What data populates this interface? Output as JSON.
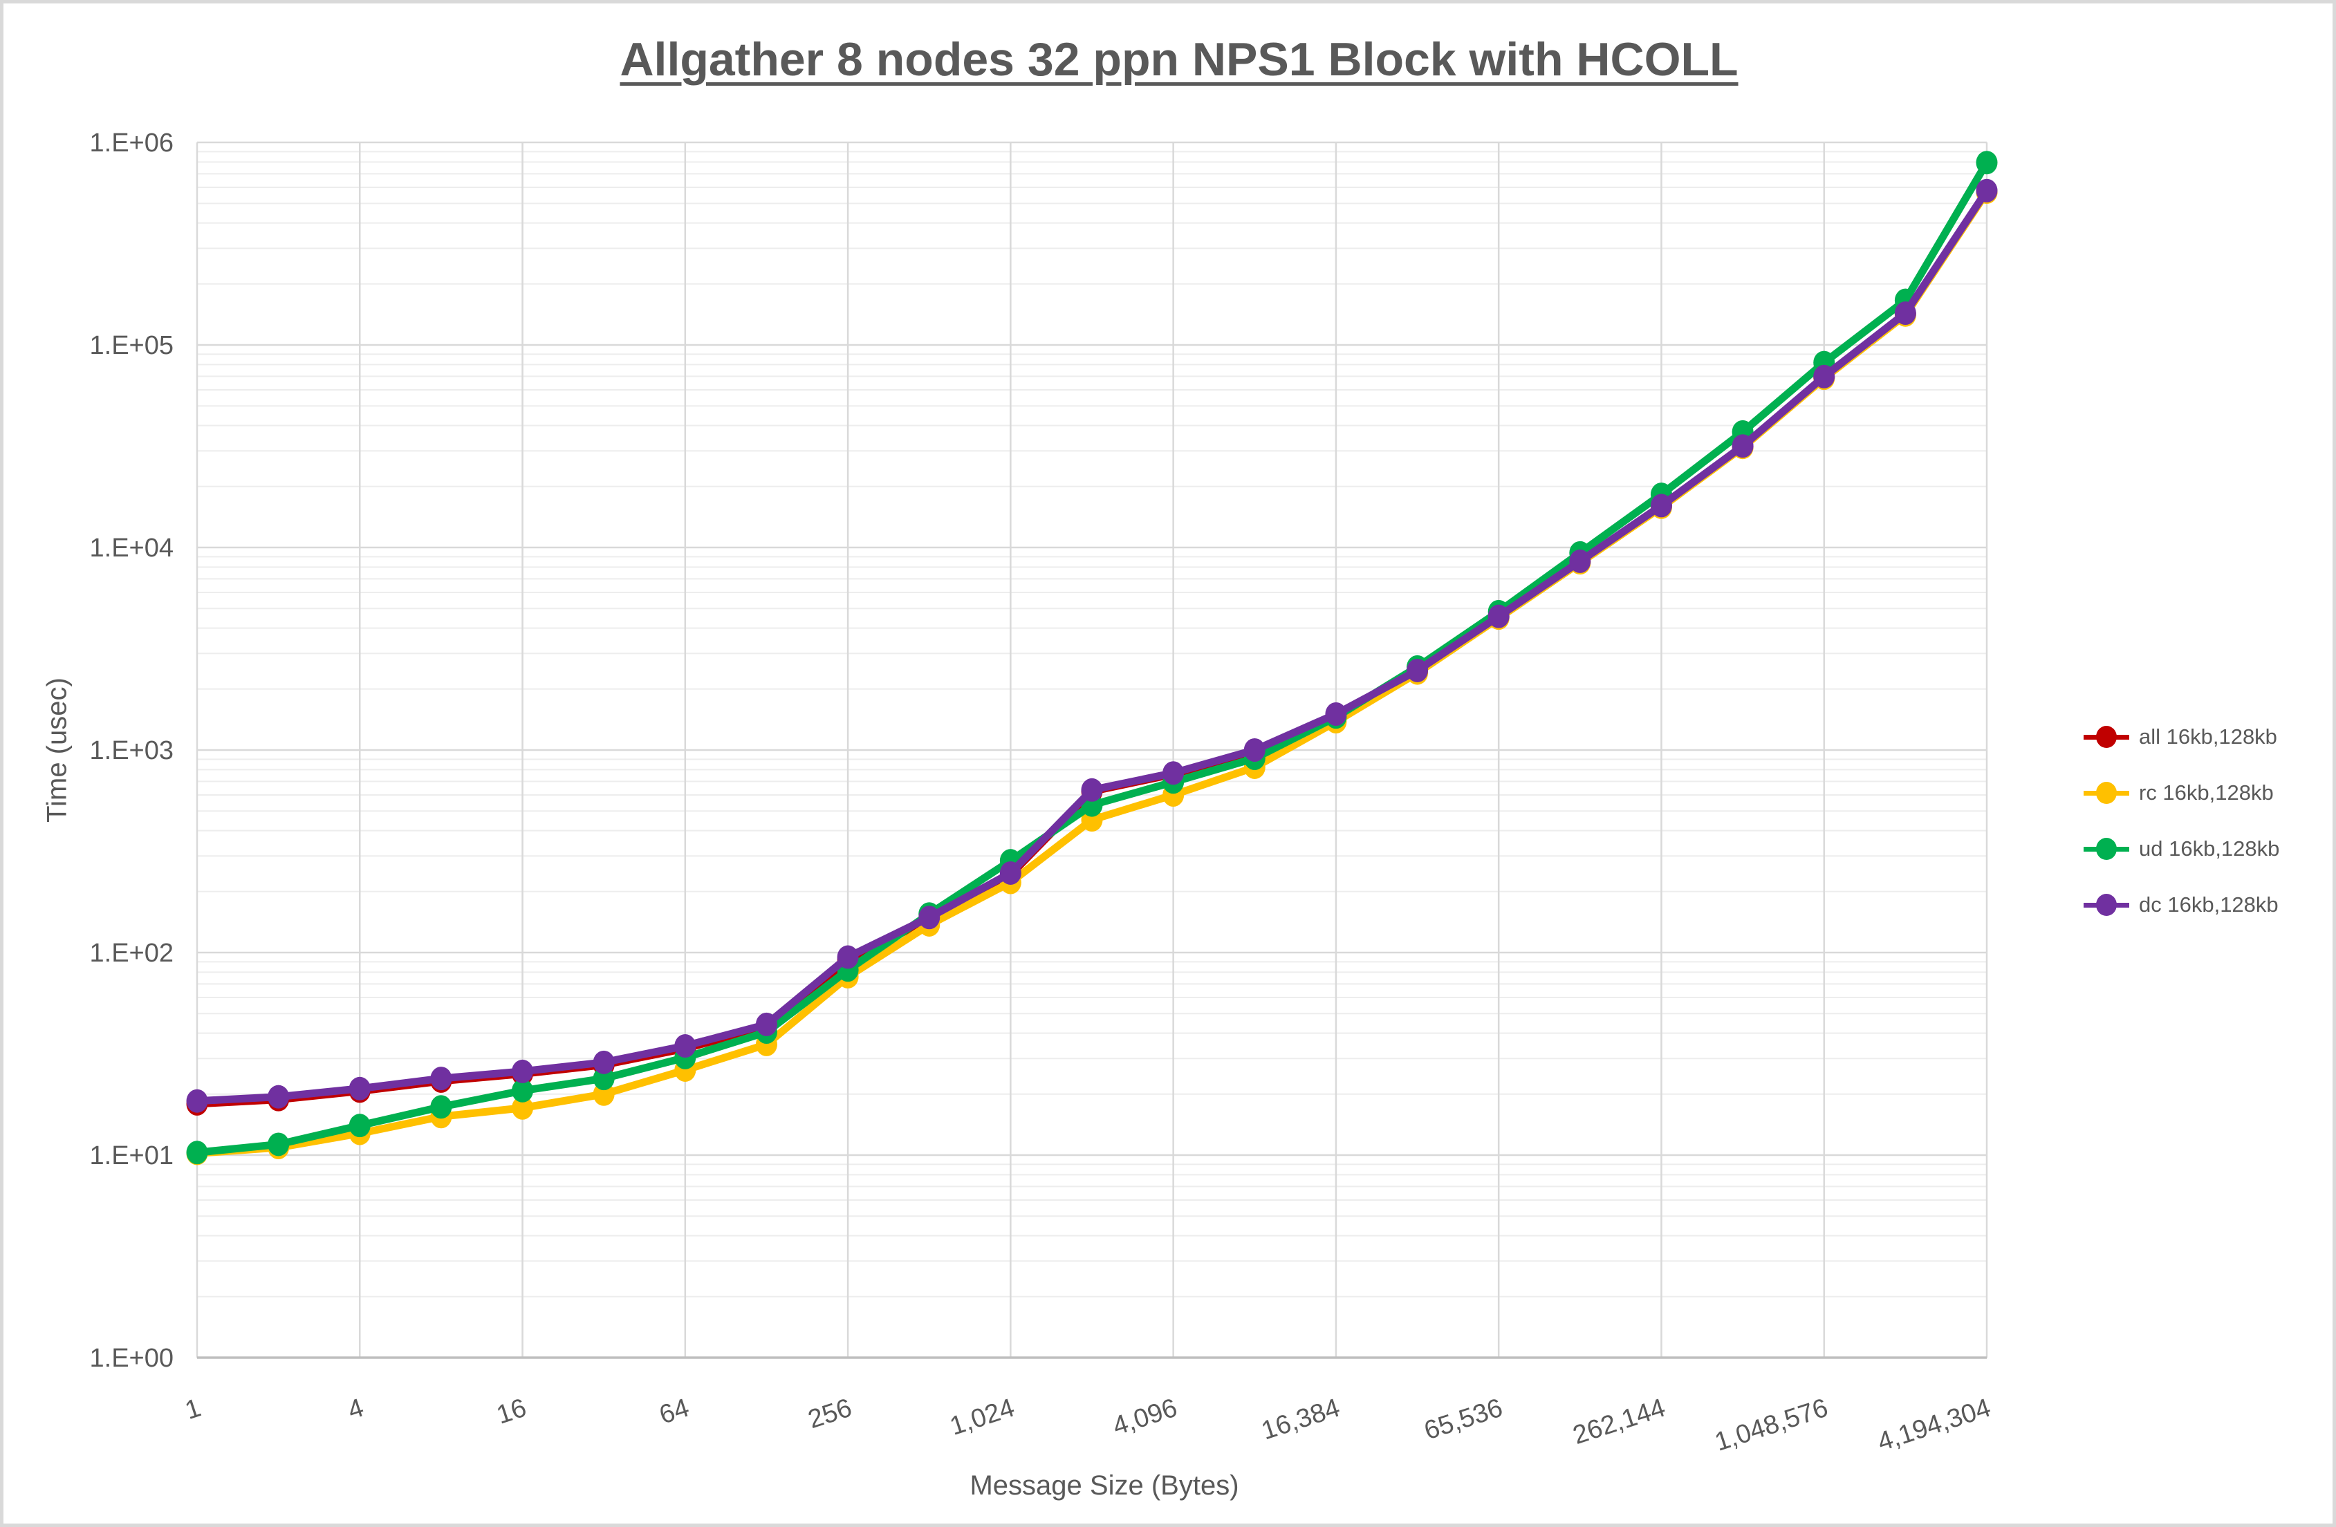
{
  "chart": {
    "title": "Allgather 8 nodes 32 ppn NPS1 Block with HCOLL",
    "x_axis_title": "Message Size (Bytes)",
    "y_axis_title": "Time (usec)"
  },
  "chart_data": {
    "type": "line",
    "x_scale": "log2 categories",
    "y_scale": "log10",
    "ylim": [
      1,
      1000000
    ],
    "grid": true,
    "legend_position": "right",
    "y_tick_labels": [
      "1.E+00",
      "1.E+01",
      "1.E+02",
      "1.E+03",
      "1.E+04",
      "1.E+05",
      "1.E+06"
    ],
    "x_tick_labels": [
      "1",
      "4",
      "16",
      "64",
      "256",
      "1,024",
      "4,096",
      "16,384",
      "65,536",
      "262,144",
      "1,048,576",
      "4,194,304"
    ],
    "categories": [
      1,
      2,
      4,
      8,
      16,
      32,
      64,
      128,
      256,
      512,
      1024,
      2048,
      4096,
      8192,
      16384,
      32768,
      65536,
      131072,
      262144,
      524288,
      1048576,
      2097152,
      4194304
    ],
    "series": [
      {
        "name": "all 16kb,128kb",
        "color": "#C00000",
        "values": [
          17.9,
          18.8,
          20.7,
          23.2,
          25.2,
          27.9,
          33.6,
          43.0,
          92,
          146,
          242,
          625,
          760,
          985,
          1480,
          2450,
          4520,
          8480,
          16000,
          31400,
          69000,
          142000,
          572000
        ]
      },
      {
        "name": "rc 16kb,128kb",
        "color": "#FFC000",
        "values": [
          10.2,
          10.9,
          12.8,
          15.5,
          17.1,
          20.0,
          26.3,
          35.2,
          76,
          137,
          222,
          452,
          600,
          822,
          1380,
          2400,
          4480,
          8400,
          15800,
          31200,
          68500,
          140500,
          568000
        ]
      },
      {
        "name": "ud 16kb,128kb",
        "color": "#00B050",
        "values": [
          10.3,
          11.3,
          14.0,
          17.3,
          20.8,
          23.9,
          30.3,
          40.5,
          82,
          155,
          284,
          535,
          695,
          910,
          1455,
          2570,
          4820,
          9400,
          18300,
          37200,
          81800,
          166000,
          795000
        ]
      },
      {
        "name": "dc 16kb,128kb",
        "color": "#7030A0",
        "values": [
          18.5,
          19.4,
          21.3,
          23.9,
          25.9,
          28.7,
          34.6,
          44.2,
          95,
          149,
          247,
          635,
          770,
          1000,
          1505,
          2470,
          4570,
          8550,
          16100,
          31700,
          69800,
          143500,
          578000
        ]
      }
    ]
  },
  "colors": {
    "title_text": "#595959",
    "axis_text": "#595959",
    "grid_major": "#D9D9D9",
    "grid_minor": "#EDEDED",
    "axis_line": "#BFBFBF",
    "background": "#FFFFFF",
    "frame_border": "#D9D9D9"
  }
}
